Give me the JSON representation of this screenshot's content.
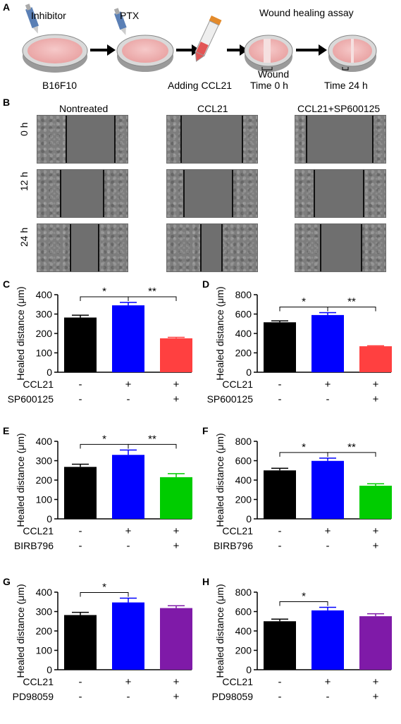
{
  "panelA": {
    "label": "A",
    "steps": [
      "Inhibitor",
      "PTX",
      "Wound healing assay"
    ],
    "captions": [
      "B16F10",
      "Adding CCL21",
      "Wound",
      "Time 0 h",
      "Time 24 h"
    ]
  },
  "panelB": {
    "label": "B",
    "columns": [
      "Nontreated",
      "CCL21",
      "CCL21+SP600125"
    ],
    "rows": [
      "0 h",
      "12 h",
      "24 h"
    ]
  },
  "colors": {
    "black": "#000000",
    "blue": "#0000ff",
    "red": "#ff4040",
    "green": "#00cc00",
    "purple": "#7f1aa8"
  },
  "chart_data": [
    {
      "panel": "C",
      "type": "bar",
      "ylabel": "Healed distance (μm)",
      "ylim": [
        0,
        400
      ],
      "yticks": [
        0,
        100,
        200,
        300,
        400
      ],
      "values": [
        282,
        345,
        175
      ],
      "errors": [
        12,
        15,
        5
      ],
      "colors": [
        "#000000",
        "#0000ff",
        "#ff4040"
      ],
      "row_labels": [
        "CCL21",
        "SP600125"
      ],
      "row_values": [
        [
          "-",
          "+",
          "+"
        ],
        [
          "-",
          "-",
          "+"
        ]
      ],
      "sig": [
        {
          "from": 0,
          "to": 1,
          "label": "*"
        },
        {
          "from": 1,
          "to": 2,
          "label": "**"
        }
      ]
    },
    {
      "panel": "D",
      "type": "bar",
      "ylabel": "Healed distance (μm)",
      "ylim": [
        0,
        800
      ],
      "yticks": [
        0,
        200,
        400,
        600,
        800
      ],
      "values": [
        515,
        590,
        268
      ],
      "errors": [
        15,
        25,
        5
      ],
      "colors": [
        "#000000",
        "#0000ff",
        "#ff4040"
      ],
      "row_labels": [
        "CCL21",
        "SP600125"
      ],
      "row_values": [
        [
          "-",
          "+",
          "+"
        ],
        [
          "-",
          "-",
          "+"
        ]
      ],
      "sig": [
        {
          "from": 0,
          "to": 1,
          "label": "*"
        },
        {
          "from": 1,
          "to": 2,
          "label": "**"
        }
      ]
    },
    {
      "panel": "E",
      "type": "bar",
      "ylabel": "Healed distance (μm)",
      "ylim": [
        0,
        400
      ],
      "yticks": [
        0,
        100,
        200,
        300,
        400
      ],
      "values": [
        268,
        330,
        215
      ],
      "errors": [
        14,
        25,
        18
      ],
      "colors": [
        "#000000",
        "#0000ff",
        "#00cc00"
      ],
      "row_labels": [
        "CCL21",
        "BIRB796"
      ],
      "row_values": [
        [
          "-",
          "+",
          "+"
        ],
        [
          "-",
          "-",
          "+"
        ]
      ],
      "sig": [
        {
          "from": 0,
          "to": 1,
          "label": "*"
        },
        {
          "from": 1,
          "to": 2,
          "label": "**"
        }
      ]
    },
    {
      "panel": "F",
      "type": "bar",
      "ylabel": "Healed distance (μm)",
      "ylim": [
        0,
        800
      ],
      "yticks": [
        0,
        200,
        400,
        600,
        800
      ],
      "values": [
        500,
        598,
        342
      ],
      "errors": [
        22,
        28,
        20
      ],
      "colors": [
        "#000000",
        "#0000ff",
        "#00cc00"
      ],
      "row_labels": [
        "CCL21",
        "BIRB796"
      ],
      "row_values": [
        [
          "-",
          "+",
          "+"
        ],
        [
          "-",
          "-",
          "+"
        ]
      ],
      "sig": [
        {
          "from": 0,
          "to": 1,
          "label": "*"
        },
        {
          "from": 1,
          "to": 2,
          "label": "**"
        }
      ]
    },
    {
      "panel": "G",
      "type": "bar",
      "ylabel": "Healed distance (μm)",
      "ylim": [
        0,
        400
      ],
      "yticks": [
        0,
        100,
        200,
        300,
        400
      ],
      "values": [
        282,
        347,
        318
      ],
      "errors": [
        14,
        22,
        12
      ],
      "colors": [
        "#000000",
        "#0000ff",
        "#7f1aa8"
      ],
      "row_labels": [
        "CCL21",
        "PD98059"
      ],
      "row_values": [
        [
          "-",
          "+",
          "+"
        ],
        [
          "-",
          "-",
          "+"
        ]
      ],
      "sig": [
        {
          "from": 0,
          "to": 1,
          "label": "*"
        }
      ]
    },
    {
      "panel": "H",
      "type": "bar",
      "ylabel": "Healed distance (μm)",
      "ylim": [
        0,
        800
      ],
      "yticks": [
        0,
        200,
        400,
        600,
        800
      ],
      "values": [
        500,
        612,
        552
      ],
      "errors": [
        22,
        32,
        25
      ],
      "colors": [
        "#000000",
        "#0000ff",
        "#7f1aa8"
      ],
      "row_labels": [
        "CCL21",
        "PD98059"
      ],
      "row_values": [
        [
          "-",
          "+",
          "+"
        ],
        [
          "-",
          "-",
          "+"
        ]
      ],
      "sig": [
        {
          "from": 0,
          "to": 1,
          "label": "*"
        }
      ]
    }
  ]
}
